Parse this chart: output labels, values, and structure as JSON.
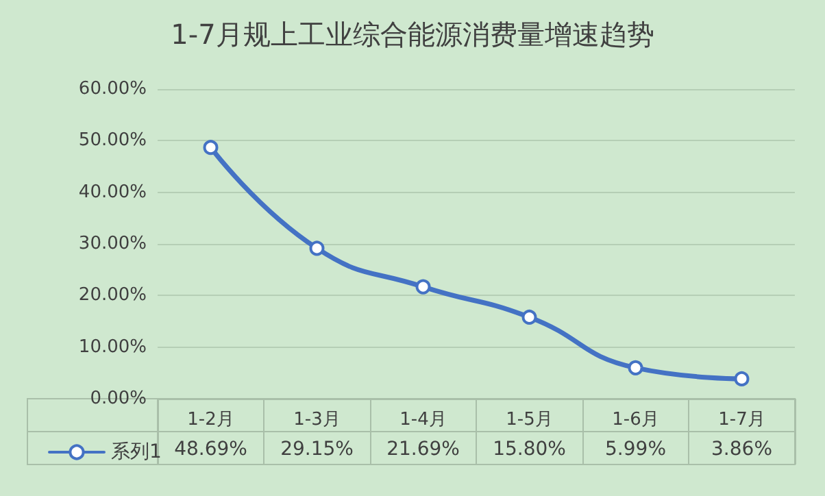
{
  "chart_data": {
    "type": "line",
    "title": "1-7月规上工业综合能源消费量增速趋势",
    "categories": [
      "1-2月",
      "1-3月",
      "1-4月",
      "1-5月",
      "1-6月",
      "1-7月"
    ],
    "series": [
      {
        "name": "系列1",
        "color": "#4472c4",
        "values": [
          48.69,
          29.15,
          21.69,
          15.8,
          5.99,
          3.86
        ],
        "value_labels": [
          "48.69%",
          "29.15%",
          "21.69%",
          "15.80%",
          "5.99%",
          "3.86%"
        ]
      }
    ],
    "ylim": [
      0,
      60
    ],
    "yticks": [
      {
        "value": 0,
        "label": "0.00%"
      },
      {
        "value": 10,
        "label": "10.00%"
      },
      {
        "value": 20,
        "label": "20.00%"
      },
      {
        "value": 30,
        "label": "30.00%"
      },
      {
        "value": 40,
        "label": "40.00%"
      },
      {
        "value": 50,
        "label": "50.00%"
      },
      {
        "value": 60,
        "label": "60.00%"
      }
    ],
    "grid": "y",
    "legend": "bottom left",
    "marker": "circle",
    "line_style": "solid"
  }
}
